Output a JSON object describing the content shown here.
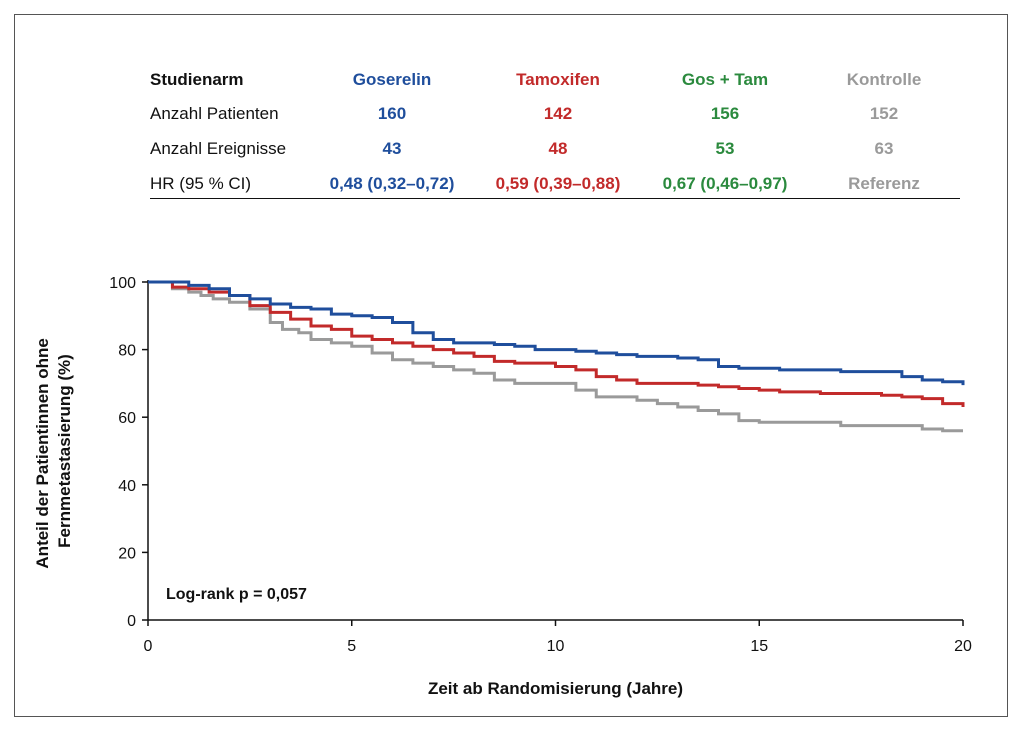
{
  "table": {
    "header": {
      "label": "Studienarm",
      "arms": [
        "Goserelin",
        "Tamoxifen",
        "Gos + Tam",
        "Kontrolle"
      ]
    },
    "rows": [
      {
        "label": "Anzahl Patienten",
        "values": [
          "160",
          "142",
          "156",
          "152"
        ]
      },
      {
        "label": "Anzahl Ereignisse",
        "values": [
          "43",
          "48",
          "53",
          "63"
        ]
      },
      {
        "label": "HR (95 % CI)",
        "values": [
          "0,48 (0,32–0,72)",
          "0,59 (0,39–0,88)",
          "0,67 (0,46–0,97)",
          "Referenz"
        ]
      }
    ],
    "arm_colors": [
      "#1f4e9c",
      "#c22a2a",
      "#2b8a3e",
      "#9a9a9a"
    ]
  },
  "annotation": "Log-rank p = 0,057",
  "chart_data": {
    "type": "line",
    "xlabel": "Zeit ab Randomisierung (Jahre)",
    "ylabel_lines": [
      "Anteil der Patientinnen ohne",
      "Fernmetastasierung (%)"
    ],
    "xlim": [
      0,
      20
    ],
    "ylim": [
      0,
      100
    ],
    "xticks": [
      0,
      5,
      10,
      15,
      20
    ],
    "yticks": [
      0,
      20,
      40,
      60,
      80,
      100
    ],
    "grid": false,
    "series": [
      {
        "color": "#9a9a9a",
        "x": [
          0,
          0.6,
          1.0,
          1.3,
          1.6,
          2.0,
          2.5,
          3.0,
          3.3,
          3.7,
          4.0,
          4.5,
          5.0,
          5.5,
          6.0,
          6.5,
          7.0,
          7.5,
          8.0,
          8.5,
          9.0,
          9.5,
          10.0,
          10.5,
          11.0,
          11.5,
          12.0,
          12.5,
          13.0,
          13.5,
          14.0,
          14.5,
          15.0,
          15.5,
          16.0,
          16.5,
          17.0,
          17.5,
          18.0,
          18.5,
          19.0,
          19.5,
          20.0
        ],
        "y": [
          100,
          98,
          97,
          96,
          95,
          94,
          92,
          88,
          86,
          85,
          83,
          82,
          81,
          79,
          77,
          76,
          75,
          74,
          73,
          71,
          70,
          70,
          70,
          68,
          66,
          66,
          65,
          64,
          63,
          62,
          61,
          59,
          58.5,
          58.5,
          58.5,
          58.5,
          57.5,
          57.5,
          57.5,
          57.5,
          56.5,
          56,
          56
        ]
      },
      {
        "color": "#c22a2a",
        "x": [
          0,
          0.6,
          1.0,
          1.5,
          2.0,
          2.5,
          3.0,
          3.5,
          4.0,
          4.5,
          5.0,
          5.5,
          6.0,
          6.5,
          7.0,
          7.5,
          8.0,
          8.5,
          9.0,
          9.5,
          10.0,
          10.5,
          11.0,
          11.5,
          12.0,
          12.5,
          13.0,
          13.5,
          14.0,
          14.5,
          15.0,
          15.5,
          16.0,
          16.5,
          17.0,
          17.5,
          18.0,
          18.5,
          19.0,
          19.5,
          20.0
        ],
        "y": [
          100,
          98.5,
          98,
          97,
          96,
          93,
          91,
          89,
          87,
          86,
          84,
          83,
          82,
          81,
          80,
          79,
          78,
          76.5,
          76,
          76,
          75,
          74,
          72,
          71,
          70,
          70,
          70,
          69.5,
          69,
          68.5,
          68,
          67.5,
          67.5,
          67,
          67,
          67,
          66.5,
          66,
          65.5,
          64,
          63
        ]
      },
      {
        "color": "#1f4e9c",
        "x": [
          0,
          0.6,
          1.0,
          1.5,
          2.0,
          2.5,
          3.0,
          3.5,
          4.0,
          4.5,
          5.0,
          5.5,
          6.0,
          6.5,
          7.0,
          7.5,
          8.0,
          8.5,
          9.0,
          9.5,
          10.0,
          10.5,
          11.0,
          11.5,
          12.0,
          12.5,
          13.0,
          13.5,
          14.0,
          14.5,
          15.0,
          15.5,
          16.0,
          16.5,
          17.0,
          17.5,
          18.0,
          18.5,
          19.0,
          19.5,
          20.0
        ],
        "y": [
          100,
          100,
          99,
          98,
          96,
          95,
          93.5,
          92.5,
          92,
          90.5,
          90,
          89.5,
          88,
          85,
          83,
          82,
          82,
          81.5,
          81,
          80,
          80,
          79.5,
          79,
          78.5,
          78,
          78,
          77.5,
          77,
          75,
          74.5,
          74.5,
          74,
          74,
          74,
          73.5,
          73.5,
          73.5,
          72,
          71,
          70.5,
          69.5
        ]
      }
    ]
  }
}
